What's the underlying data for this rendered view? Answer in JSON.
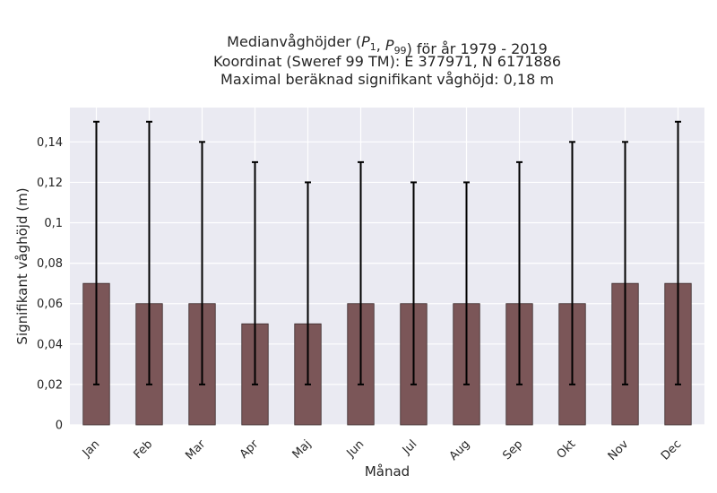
{
  "chart_data": {
    "type": "bar",
    "title_lines": [
      "Medianvåghöjder (P1, P99) för år 1979 - 2019",
      "Koordinat (Sweref 99 TM): E 377971, N 6171886",
      "Maximal beräknad signifikant våghöjd: 0,18 m"
    ],
    "xlabel": "Månad",
    "ylabel": "Signifikant våghöjd (m)",
    "categories": [
      "Jan",
      "Feb",
      "Mar",
      "Apr",
      "Maj",
      "Jun",
      "Jul",
      "Aug",
      "Sep",
      "Okt",
      "Nov",
      "Dec"
    ],
    "values": [
      0.07,
      0.06,
      0.06,
      0.05,
      0.05,
      0.06,
      0.06,
      0.06,
      0.06,
      0.06,
      0.07,
      0.07
    ],
    "error_low": [
      0.02,
      0.02,
      0.02,
      0.02,
      0.02,
      0.02,
      0.02,
      0.02,
      0.02,
      0.02,
      0.02,
      0.02
    ],
    "error_high": [
      0.15,
      0.15,
      0.14,
      0.13,
      0.12,
      0.13,
      0.12,
      0.12,
      0.13,
      0.14,
      0.14,
      0.15
    ],
    "ylim": [
      0,
      0.157
    ],
    "yticks": [
      0,
      0.02,
      0.04,
      0.06,
      0.08,
      0.1,
      0.12,
      0.14
    ],
    "ytick_labels": [
      "0",
      "0,02",
      "0,04",
      "0,06",
      "0,08",
      "0,1",
      "0,12",
      "0,14"
    ],
    "grid": true,
    "colors": {
      "bar": "#7b5658",
      "bar_edge": "#3a2a2b",
      "plot_bg": "#eaeaf2",
      "grid": "#ffffff",
      "error_bar": "#000000"
    }
  }
}
